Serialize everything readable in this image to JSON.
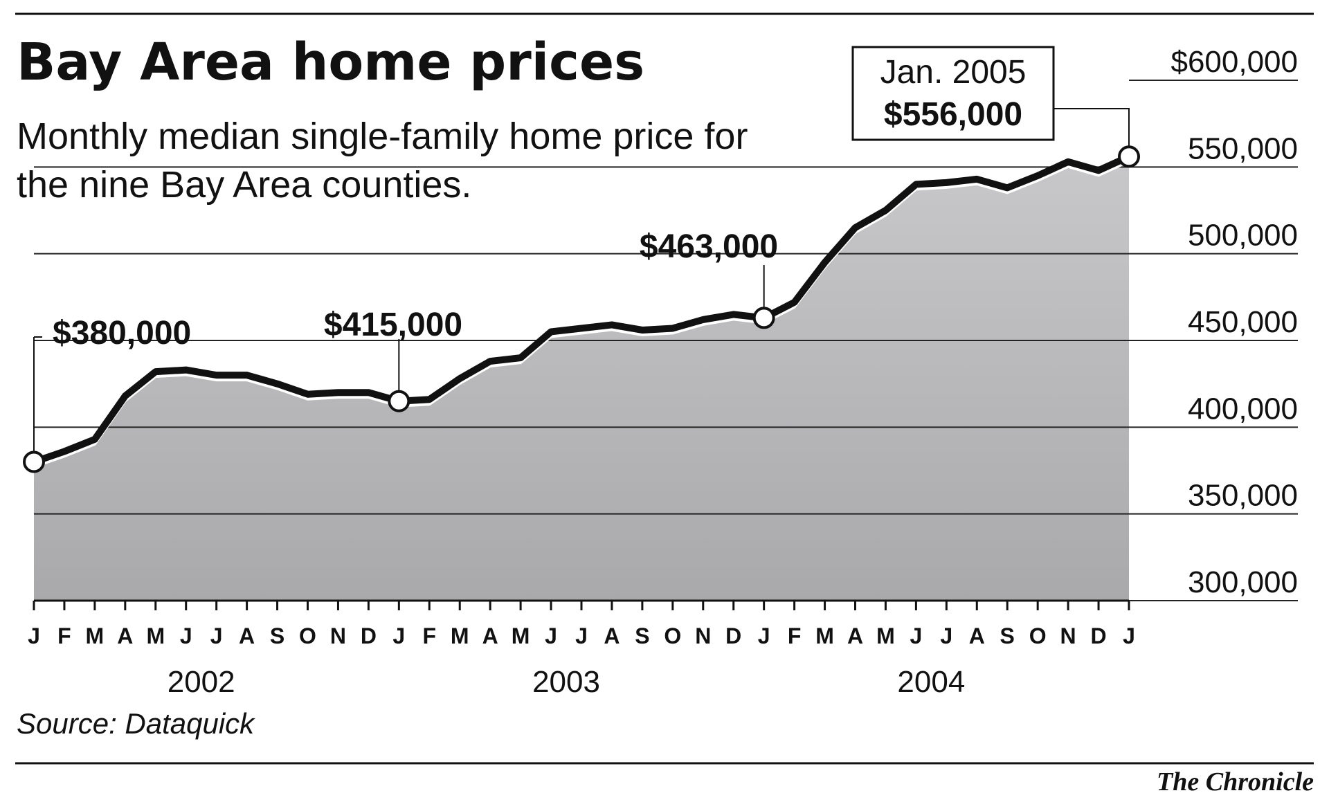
{
  "chart_data": {
    "type": "area-line",
    "title": "Bay Area home prices",
    "subtitle": [
      "Monthly median single-family home price for",
      "the nine Bay Area counties."
    ],
    "categories": [
      "J",
      "F",
      "M",
      "A",
      "M",
      "J",
      "J",
      "A",
      "S",
      "O",
      "N",
      "D",
      "J",
      "F",
      "M",
      "A",
      "M",
      "J",
      "J",
      "A",
      "S",
      "O",
      "N",
      "D",
      "J",
      "F",
      "M",
      "A",
      "M",
      "J",
      "J",
      "A",
      "S",
      "O",
      "N",
      "D",
      "J"
    ],
    "years": [
      "2002",
      "2003",
      "2004"
    ],
    "values": [
      380000,
      386000,
      393000,
      418000,
      432000,
      433000,
      430000,
      430000,
      425000,
      419000,
      420000,
      420000,
      415000,
      416000,
      428000,
      438000,
      440000,
      455000,
      457000,
      459000,
      456000,
      457000,
      462000,
      465000,
      463000,
      472000,
      495000,
      515000,
      525000,
      540000,
      541000,
      543000,
      538000,
      545000,
      553000,
      548000,
      556000
    ],
    "value_labels": [
      "$380,000",
      null,
      null,
      null,
      null,
      null,
      null,
      null,
      null,
      null,
      null,
      null,
      "$415,000",
      null,
      null,
      null,
      null,
      null,
      null,
      null,
      null,
      null,
      null,
      null,
      "$463,000",
      null,
      null,
      null,
      null,
      null,
      null,
      null,
      null,
      null,
      null,
      null,
      "$556,000"
    ],
    "annotation": "Jan. 2005",
    "ylim": [
      300000,
      600000
    ],
    "yticks": [
      {
        "value": 300000,
        "label": "300,000"
      },
      {
        "value": 350000,
        "label": "350,000"
      },
      {
        "value": 400000,
        "label": "400,000"
      },
      {
        "value": 450000,
        "label": "450,000"
      },
      {
        "value": 500000,
        "label": "500,000"
      },
      {
        "value": 550000,
        "label": "550,000"
      },
      {
        "value": 600000,
        "label": "$600,000"
      }
    ],
    "grid": true,
    "color": "#111111",
    "fill": "#b4b4b6",
    "source": "Source: Dataquick",
    "credit": "The Chronicle"
  }
}
